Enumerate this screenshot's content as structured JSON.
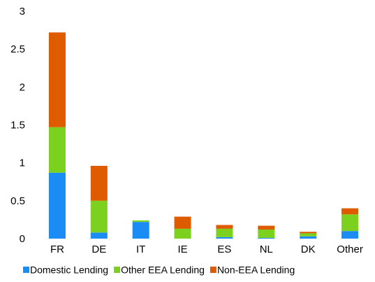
{
  "chart_data": {
    "type": "stacked-bar",
    "categories": [
      "FR",
      "DE",
      "IT",
      "IE",
      "ES",
      "NL",
      "DK",
      "Other"
    ],
    "series": [
      {
        "name": "Domestic Lending",
        "color": "#1c8cf5",
        "values": [
          0.87,
          0.08,
          0.22,
          0.0,
          0.02,
          0.01,
          0.03,
          0.1
        ]
      },
      {
        "name": "Other EEA Lending",
        "color": "#7cd11f",
        "values": [
          0.6,
          0.42,
          0.02,
          0.13,
          0.11,
          0.11,
          0.04,
          0.22
        ]
      },
      {
        "name": "Non-EEA Lending",
        "color": "#de5b00",
        "values": [
          1.25,
          0.46,
          0.0,
          0.16,
          0.05,
          0.05,
          0.02,
          0.08
        ]
      }
    ],
    "ylim": [
      0,
      3
    ],
    "yticks": [
      0,
      0.5,
      1,
      1.5,
      2,
      2.5,
      3
    ],
    "grid": false,
    "legend": "bottom"
  }
}
